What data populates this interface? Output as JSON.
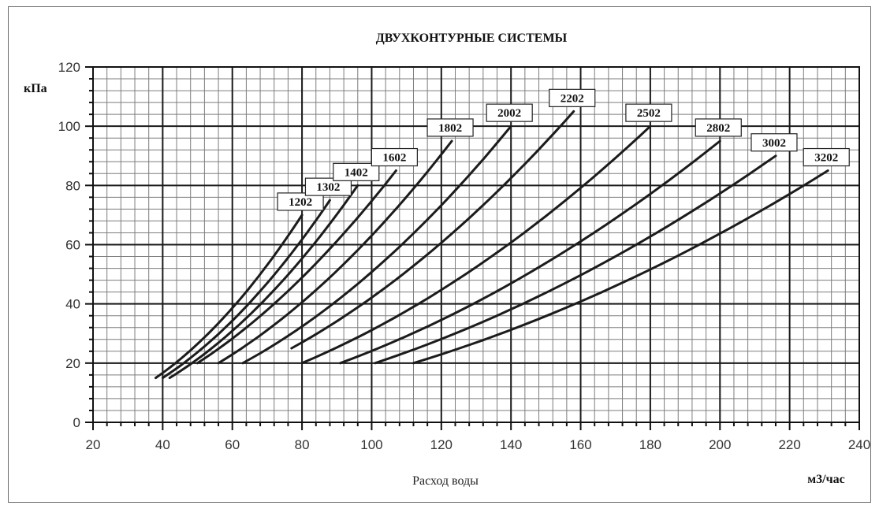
{
  "chart_data": {
    "type": "line",
    "title": "ДВУХКОНТУРНЫЕ СИСТЕМЫ",
    "xlabel": "Расход воды",
    "x_unit": "м3/час",
    "y_unit": "кПа",
    "xlim": [
      20,
      240
    ],
    "ylim": [
      0,
      120
    ],
    "x_ticks": [
      20,
      40,
      60,
      80,
      100,
      120,
      140,
      160,
      180,
      200,
      220,
      240
    ],
    "y_ticks": [
      0,
      20,
      40,
      60,
      80,
      100,
      120
    ],
    "grid": true,
    "series": [
      {
        "name": "1202",
        "x": [
          38,
          80
        ],
        "y": [
          15,
          70
        ],
        "label_at": [
          80,
          70
        ]
      },
      {
        "name": "1302",
        "x": [
          40,
          88
        ],
        "y": [
          15,
          75
        ],
        "label_at": [
          88,
          75
        ]
      },
      {
        "name": "1402",
        "x": [
          42,
          96
        ],
        "y": [
          15,
          80
        ],
        "label_at": [
          96,
          80
        ]
      },
      {
        "name": "1602",
        "x": [
          50,
          107
        ],
        "y": [
          20,
          85
        ],
        "label_at": [
          107,
          85
        ]
      },
      {
        "name": "1802",
        "x": [
          56,
          123
        ],
        "y": [
          20,
          95
        ],
        "label_at": [
          123,
          95
        ]
      },
      {
        "name": "2002",
        "x": [
          63,
          140
        ],
        "y": [
          20,
          100
        ],
        "label_at": [
          140,
          100
        ]
      },
      {
        "name": "2202",
        "x": [
          77,
          158
        ],
        "y": [
          25,
          105
        ],
        "label_at": [
          158,
          105
        ]
      },
      {
        "name": "2502",
        "x": [
          80,
          180
        ],
        "y": [
          20,
          100
        ],
        "label_at": [
          180,
          100
        ]
      },
      {
        "name": "2802",
        "x": [
          91,
          200
        ],
        "y": [
          20,
          95
        ],
        "label_at": [
          200,
          95
        ]
      },
      {
        "name": "3002",
        "x": [
          101,
          216
        ],
        "y": [
          20,
          90
        ],
        "label_at": [
          216,
          90
        ]
      },
      {
        "name": "3202",
        "x": [
          112,
          231
        ],
        "y": [
          20,
          85
        ],
        "label_at": [
          231,
          85
        ]
      }
    ]
  }
}
